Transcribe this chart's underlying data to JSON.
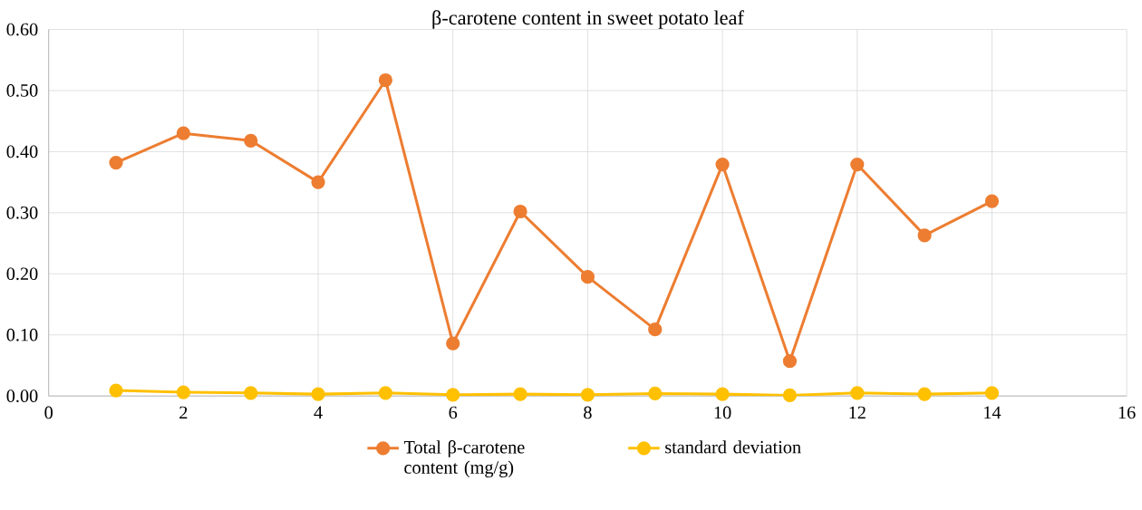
{
  "chart_data": {
    "type": "line",
    "title": "β-carotene content in sweet potato leaf",
    "x": [
      1,
      2,
      3,
      4,
      5,
      6,
      7,
      8,
      9,
      10,
      11,
      12,
      13,
      14
    ],
    "series": [
      {
        "name": "Total β-carotene content (mg/g)",
        "color": "#ed7d31",
        "values": [
          0.382,
          0.43,
          0.418,
          0.35,
          0.517,
          0.086,
          0.302,
          0.195,
          0.109,
          0.379,
          0.057,
          0.379,
          0.263,
          0.319
        ]
      },
      {
        "name": "standard deviation",
        "color": "#ffc000",
        "values": [
          0.009,
          0.006,
          0.005,
          0.003,
          0.005,
          0.002,
          0.003,
          0.002,
          0.004,
          0.003,
          0.001,
          0.005,
          0.003,
          0.005
        ]
      }
    ],
    "xlim": [
      0,
      16
    ],
    "xticks": [
      0,
      2,
      4,
      6,
      8,
      10,
      12,
      14,
      16
    ],
    "ylim": [
      0,
      0.6
    ],
    "yticks": [
      {
        "value": 0,
        "label": "0.00"
      },
      {
        "value": 0.1,
        "label": "0.10"
      },
      {
        "value": 0.2,
        "label": "0.20"
      },
      {
        "value": 0.3,
        "label": "0.30"
      },
      {
        "value": 0.4,
        "label": "0.40"
      },
      {
        "value": 0.5,
        "label": "0.50"
      },
      {
        "value": 0.6,
        "label": "0.60"
      }
    ],
    "grid": true,
    "legend": "bottom",
    "marker": "circle",
    "line_style": "solid"
  }
}
